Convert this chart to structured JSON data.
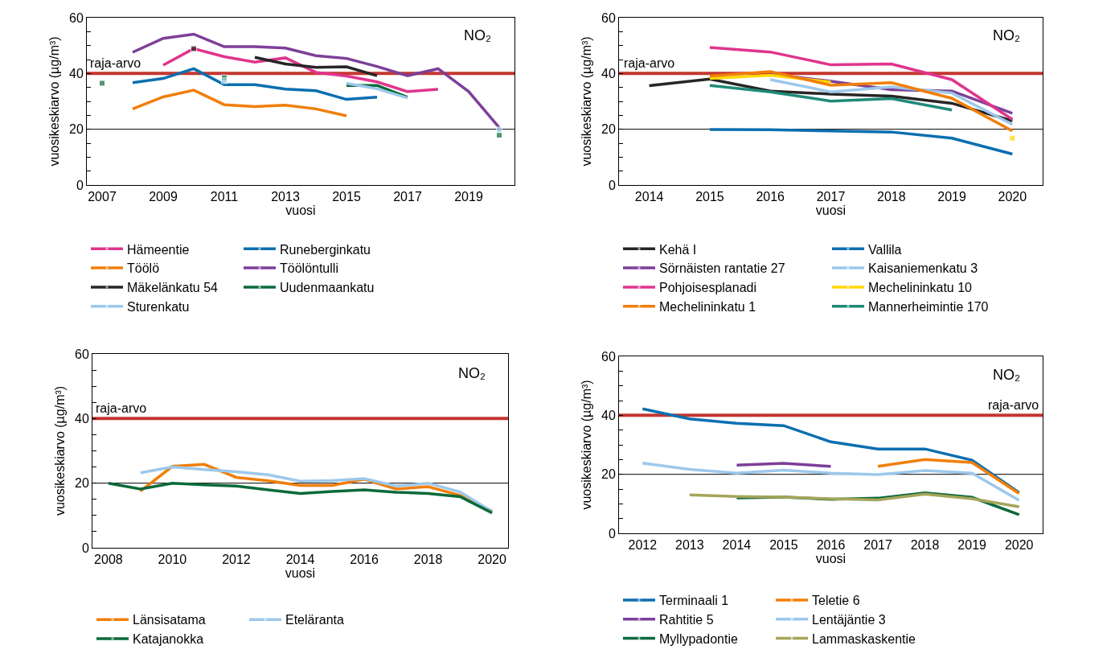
{
  "chart_data": [
    {
      "type": "line",
      "xlabel": "vuosi",
      "ylabel": "vuosikeskiarvo (µg/m³)",
      "categories": [
        "2007",
        null,
        "2009",
        null,
        "2011",
        null,
        "2013",
        null,
        "2015",
        null,
        "2017",
        null,
        "2019",
        null
      ],
      "ylim": [
        0,
        60
      ],
      "yticks": [
        0,
        {
          "value": 5,
          "label": null
        },
        {
          "value": 10,
          "label": null
        },
        {
          "value": 15,
          "label": null
        },
        20,
        {
          "value": 25,
          "label": null
        },
        {
          "value": 30,
          "label": null
        },
        {
          "value": 35,
          "label": null
        },
        40,
        {
          "value": 45,
          "label": null
        },
        {
          "value": 50,
          "label": null
        },
        {
          "value": 55,
          "label": null
        },
        60
      ],
      "grid": false,
      "legend": "bottom",
      "ref_lines": [
        {
          "axis": "y",
          "value": 40,
          "color": "#c3362f"
        },
        {
          "axis": "y",
          "value": 20,
          "color": "#000000"
        }
      ],
      "annotations": [
        "NO₂",
        {
          "text": "raja-arvo",
          "x": "2007",
          "y": 40
        }
      ],
      "series": [
        {
          "name": "Hämeentie",
          "color": "#e0358c",
          "values": [
            null,
            null,
            43.0,
            48.9,
            46.0,
            44.1,
            45.6,
            40.4,
            39.1,
            37.0,
            33.5,
            34.3,
            null,
            null
          ]
        },
        {
          "name": "Runeberginkatu",
          "color": "#0a6fb0",
          "values": [
            null,
            36.7,
            38.2,
            41.7,
            36.0,
            36.0,
            34.4,
            33.8,
            30.7,
            31.5,
            null,
            null,
            null,
            null
          ]
        },
        {
          "name": "Töölö",
          "color": "#f07f0a",
          "values": [
            null,
            27.3,
            31.6,
            34.0,
            28.8,
            28.1,
            28.6,
            27.3,
            24.8,
            null,
            null,
            null,
            null,
            null
          ]
        },
        {
          "name": "Töölöntulli",
          "color": "#7d3f98",
          "values": [
            null,
            47.6,
            52.6,
            54.1,
            49.6,
            49.6,
            49.1,
            46.4,
            45.4,
            42.5,
            39.2,
            41.7,
            33.5,
            20.6
          ]
        },
        {
          "name": "Mäkelänkatu 54",
          "color": "#262626",
          "values": [
            null,
            null,
            null,
            48.9,
            null,
            45.8,
            43.4,
            42.2,
            42.4,
            39.2,
            null,
            null,
            null,
            null
          ]
        },
        {
          "name": "Uudenmaankatu",
          "color": "#0b6a3a",
          "values": [
            36.5,
            null,
            null,
            null,
            38.5,
            null,
            null,
            null,
            35.7,
            35.7,
            31.5,
            null,
            null,
            17.9
          ]
        },
        {
          "name": "Sturenkatu",
          "color": "#9dc8eb",
          "values": [
            null,
            null,
            null,
            null,
            37.4,
            null,
            null,
            null,
            36.5,
            34.5,
            31.2,
            null,
            null,
            19.8
          ]
        }
      ]
    },
    {
      "type": "line",
      "xlabel": "vuosi",
      "ylabel": "vuosikeskiarvo (µg/m³)",
      "categories": [
        "2014",
        "2015",
        "2016",
        "2017",
        "2018",
        "2019",
        "2020"
      ],
      "ylim": [
        0,
        60
      ],
      "yticks": [
        0,
        {
          "value": 5,
          "label": null
        },
        {
          "value": 10,
          "label": null
        },
        {
          "value": 15,
          "label": null
        },
        20,
        {
          "value": 25,
          "label": null
        },
        {
          "value": 30,
          "label": null
        },
        {
          "value": 35,
          "label": null
        },
        40,
        {
          "value": 45,
          "label": null
        },
        {
          "value": 50,
          "label": null
        },
        {
          "value": 55,
          "label": null
        },
        60
      ],
      "grid": false,
      "legend": "bottom",
      "ref_lines": [
        {
          "axis": "y",
          "value": 40,
          "color": "#c3362f"
        },
        {
          "axis": "y",
          "value": 20,
          "color": "#000000"
        }
      ],
      "annotations": [
        "NO₂",
        {
          "text": "raja-arvo",
          "x": "2014",
          "y": 40
        }
      ],
      "series": [
        {
          "name": "Kehä I",
          "color": "#262626",
          "values": [
            35.6,
            38.0,
            33.7,
            32.6,
            31.9,
            29.3,
            23.0
          ]
        },
        {
          "name": "Vallila",
          "color": "#0a6fb0",
          "values": [
            null,
            19.9,
            19.8,
            19.4,
            19.0,
            16.8,
            11.1
          ]
        },
        {
          "name": "Sörnäisten rantatie 27",
          "color": "#7d3f98",
          "values": [
            null,
            null,
            39.8,
            37.2,
            34.2,
            33.7,
            25.7
          ]
        },
        {
          "name": "Kaisaniemenkatu 3",
          "color": "#9dc8eb",
          "values": [
            null,
            null,
            37.8,
            33.4,
            35.2,
            33.0,
            21.7
          ]
        },
        {
          "name": "Pohjoisesplanadi",
          "color": "#e0358c",
          "values": [
            null,
            49.3,
            47.7,
            43.1,
            43.4,
            37.8,
            23.5
          ]
        },
        {
          "name": "Mechelininkatu 10",
          "color": "#ffd700",
          "values": [
            null,
            38.2,
            39.4,
            36.9,
            null,
            null,
            16.8
          ]
        },
        {
          "name": "Mechelininkatu 1",
          "color": "#f07f0a",
          "values": [
            null,
            39.1,
            40.7,
            35.8,
            36.7,
            31.1,
            19.4
          ]
        },
        {
          "name": "Mannerheimintie 170",
          "color": "#1f8a78",
          "values": [
            null,
            35.7,
            33.4,
            30.1,
            31.0,
            26.9,
            null
          ]
        }
      ]
    },
    {
      "type": "line",
      "xlabel": "vuosi",
      "ylabel": "vuosikeskiarvo (µg/m³)",
      "categories": [
        "2008",
        null,
        "2010",
        null,
        "2012",
        null,
        "2014",
        null,
        "2016",
        null,
        "2018",
        null,
        "2020"
      ],
      "ylim": [
        0,
        60
      ],
      "yticks": [
        0,
        {
          "value": 5,
          "label": null
        },
        {
          "value": 10,
          "label": null
        },
        {
          "value": 15,
          "label": null
        },
        20,
        {
          "value": 25,
          "label": null
        },
        {
          "value": 30,
          "label": null
        },
        {
          "value": 35,
          "label": null
        },
        40,
        {
          "value": 45,
          "label": null
        },
        {
          "value": 50,
          "label": null
        },
        {
          "value": 55,
          "label": null
        },
        60
      ],
      "grid": false,
      "legend": "bottom",
      "ref_lines": [
        {
          "axis": "y",
          "value": 40,
          "color": "#c3362f"
        },
        {
          "axis": "y",
          "value": 20,
          "color": "#000000"
        }
      ],
      "annotations": [
        "NO₂",
        {
          "text": "raja-arvo",
          "x": "2008",
          "y": 40
        }
      ],
      "series": [
        {
          "name": "Länsisatama",
          "color": "#f07f0a",
          "values": [
            null,
            17.5,
            25.2,
            25.8,
            21.8,
            20.7,
            19.3,
            19.3,
            21.2,
            18.2,
            18.9,
            16.2,
            11.4
          ]
        },
        {
          "name": "Eteläranta",
          "color": "#9dc8eb",
          "values": [
            null,
            23.2,
            25.0,
            24.2,
            23.5,
            22.6,
            20.6,
            20.8,
            21.4,
            19.1,
            20.0,
            17.3,
            11.2
          ]
        },
        {
          "name": "Katajanokka",
          "color": "#0b6a3a",
          "values": [
            20.0,
            18.2,
            20.0,
            19.5,
            19.1,
            17.9,
            16.8,
            17.4,
            17.9,
            17.2,
            16.8,
            15.8,
            10.8
          ]
        }
      ]
    },
    {
      "type": "line",
      "xlabel": "vuosi",
      "ylabel": "vuosikeskiarvo (µg/m³)",
      "categories": [
        "2012",
        "2013",
        "2014",
        "2015",
        "2016",
        "2017",
        "2018",
        "2019",
        "2020"
      ],
      "ylim": [
        0,
        60
      ],
      "yticks": [
        0,
        {
          "value": 5,
          "label": null
        },
        {
          "value": 10,
          "label": null
        },
        {
          "value": 15,
          "label": null
        },
        20,
        {
          "value": 25,
          "label": null
        },
        {
          "value": 30,
          "label": null
        },
        {
          "value": 35,
          "label": null
        },
        40,
        {
          "value": 45,
          "label": null
        },
        {
          "value": 50,
          "label": null
        },
        {
          "value": 55,
          "label": null
        },
        60
      ],
      "grid": false,
      "legend": "bottom",
      "ref_lines": [
        {
          "axis": "y",
          "value": 40,
          "color": "#c3362f"
        },
        {
          "axis": "y",
          "value": 20,
          "color": "#000000"
        }
      ],
      "annotations": [
        "NO₂",
        {
          "text": "raja-arvo",
          "x": "2020",
          "y": 40
        }
      ],
      "series": [
        {
          "name": "Terminaali 1",
          "color": "#0a6fb0",
          "values": [
            42.2,
            38.8,
            37.3,
            36.5,
            31.0,
            28.6,
            28.6,
            24.8,
            13.8
          ]
        },
        {
          "name": "Teletie 6",
          "color": "#f07f0a",
          "values": [
            null,
            null,
            null,
            null,
            null,
            22.7,
            25.0,
            24.0,
            13.5
          ]
        },
        {
          "name": "Rahtitie 5",
          "color": "#7d3f98",
          "values": [
            null,
            null,
            23.1,
            23.7,
            22.7,
            null,
            null,
            null,
            null
          ]
        },
        {
          "name": "Lentäjäntie 3",
          "color": "#9dc8eb",
          "values": [
            23.8,
            21.7,
            20.4,
            21.4,
            20.4,
            19.9,
            21.3,
            20.4,
            11.2
          ]
        },
        {
          "name": "Myllypadontie",
          "color": "#0b6a3a",
          "values": [
            null,
            null,
            12.0,
            12.3,
            11.5,
            11.9,
            13.7,
            12.2,
            6.3
          ]
        },
        {
          "name": "Lammaskaskentie",
          "color": "#a5a55a",
          "values": [
            null,
            13.0,
            12.5,
            12.3,
            11.7,
            11.3,
            13.3,
            11.7,
            9.0
          ]
        }
      ]
    }
  ]
}
